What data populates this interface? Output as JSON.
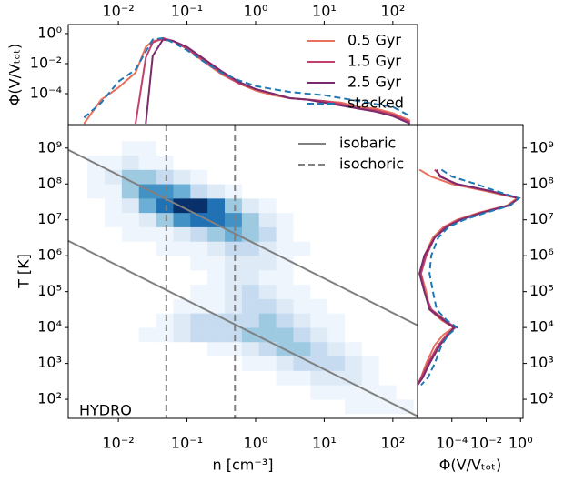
{
  "chart_data": [
    {
      "type": "heatmap",
      "xlabel": "n [cm⁻³]",
      "ylabel": "T [K]",
      "annotation": "HYDRO",
      "log_x": true,
      "log_y": true,
      "legend": "upper right",
      "xlim": [
        0.00186,
        229
      ],
      "ylim": [
        29.5,
        4500000000
      ],
      "xticks": [
        {
          "value": 0.01,
          "label": "10⁻²"
        },
        {
          "value": 0.1,
          "label": "10⁻¹"
        },
        {
          "value": 1,
          "label": "10⁰"
        },
        {
          "value": 10,
          "label": "10¹"
        },
        {
          "value": 100,
          "label": "10²"
        }
      ],
      "yticks": [
        {
          "value": 100,
          "label": "10²"
        },
        {
          "value": 1000,
          "label": "10³"
        },
        {
          "value": 10000,
          "label": "10⁴"
        },
        {
          "value": 100000,
          "label": "10⁵"
        },
        {
          "value": 1000000,
          "label": "10⁶"
        },
        {
          "value": 10000000,
          "label": "10⁷"
        },
        {
          "value": 100000000,
          "label": "10⁸"
        },
        {
          "value": 1000000000,
          "label": "10⁹"
        }
      ],
      "heatmap": {
        "zlim": [
          0,
          9
        ],
        "colormap": [
          "#ffffff",
          "#eef5fc",
          "#deebf7",
          "#c6dbef",
          "#9ecae1",
          "#6baed6",
          "#4292c6",
          "#2171b5",
          "#08519c",
          "#08306b"
        ],
        "x_edges": [
          0.001995,
          0.003548,
          0.00631,
          0.01122,
          0.01995,
          0.03548,
          0.0631,
          0.1122,
          0.1995,
          0.3548,
          0.631,
          1.122,
          1.995,
          3.548,
          6.31,
          11.22,
          19.95,
          35.48,
          63.1,
          112.2,
          199.5
        ],
        "y_edges": [
          39.8,
          100,
          251,
          631,
          1585,
          3981,
          10000,
          25119,
          63096,
          158489,
          398107,
          1000000,
          2510000,
          6310000,
          15850000,
          39800000,
          100000000,
          251000000,
          631000000,
          1585000000,
          3980000000
        ],
        "z": [
          [
            0,
            0,
            0,
            0,
            0,
            0,
            0,
            0,
            0,
            0,
            0,
            0,
            0,
            0,
            0,
            0,
            1,
            1,
            1,
            1
          ],
          [
            0,
            0,
            0,
            0,
            0,
            0,
            0,
            0,
            0,
            0,
            0,
            0,
            0,
            0,
            1,
            1,
            1,
            1,
            1,
            0
          ],
          [
            0,
            0,
            0,
            0,
            0,
            0,
            0,
            0,
            0,
            0,
            0,
            0,
            1,
            1,
            2,
            2,
            2,
            1,
            0,
            0
          ],
          [
            0,
            0,
            0,
            0,
            0,
            0,
            0,
            0,
            0,
            0,
            1,
            1,
            2,
            3,
            3,
            3,
            2,
            1,
            0,
            0
          ],
          [
            0,
            0,
            0,
            0,
            0,
            0,
            0,
            0,
            1,
            1,
            2,
            3,
            4,
            4,
            3,
            2,
            1,
            0,
            0,
            0
          ],
          [
            0,
            0,
            0,
            0,
            1,
            1,
            2,
            3,
            3,
            3,
            4,
            4,
            4,
            3,
            2,
            1,
            0,
            0,
            0,
            0
          ],
          [
            0,
            0,
            0,
            0,
            0,
            1,
            2,
            3,
            3,
            3,
            3,
            4,
            3,
            2,
            1,
            1,
            0,
            0,
            0,
            0
          ],
          [
            0,
            0,
            0,
            0,
            0,
            0,
            1,
            1,
            1,
            2,
            3,
            3,
            2,
            1,
            1,
            0,
            0,
            0,
            0,
            0
          ],
          [
            0,
            0,
            0,
            0,
            0,
            0,
            0,
            1,
            1,
            2,
            3,
            2,
            1,
            1,
            0,
            0,
            0,
            0,
            0,
            0
          ],
          [
            0,
            0,
            0,
            0,
            0,
            0,
            0,
            0,
            1,
            2,
            2,
            1,
            1,
            0,
            0,
            0,
            0,
            0,
            0,
            0
          ],
          [
            0,
            0,
            0,
            0,
            0,
            0,
            0,
            1,
            1,
            2,
            2,
            2,
            1,
            0,
            0,
            0,
            0,
            0,
            0,
            0
          ],
          [
            0,
            0,
            0,
            0,
            0,
            1,
            1,
            1,
            2,
            3,
            3,
            2,
            1,
            1,
            0,
            0,
            0,
            0,
            0,
            0
          ],
          [
            0,
            0,
            0,
            1,
            1,
            1,
            2,
            3,
            4,
            5,
            4,
            3,
            1,
            0,
            0,
            0,
            0,
            0,
            0,
            0
          ],
          [
            0,
            0,
            1,
            1,
            2,
            4,
            6,
            7,
            7,
            6,
            4,
            2,
            1,
            0,
            0,
            0,
            0,
            0,
            0,
            0
          ],
          [
            0,
            0,
            1,
            2,
            5,
            7,
            9,
            9,
            7,
            4,
            2,
            1,
            0,
            0,
            0,
            0,
            0,
            0,
            0,
            0
          ],
          [
            0,
            1,
            1,
            4,
            6,
            6,
            5,
            3,
            2,
            1,
            0,
            0,
            0,
            0,
            0,
            0,
            0,
            0,
            0,
            0
          ],
          [
            0,
            1,
            2,
            4,
            4,
            3,
            2,
            1,
            0,
            0,
            0,
            0,
            0,
            0,
            0,
            0,
            0,
            0,
            0,
            0
          ],
          [
            0,
            1,
            1,
            2,
            1,
            1,
            0,
            0,
            0,
            0,
            0,
            0,
            0,
            0,
            0,
            0,
            0,
            0,
            0,
            0
          ],
          [
            0,
            0,
            0,
            1,
            1,
            0,
            0,
            0,
            0,
            0,
            0,
            0,
            0,
            0,
            0,
            0,
            0,
            0,
            0,
            0
          ],
          [
            0,
            0,
            0,
            0,
            0,
            0,
            0,
            0,
            0,
            0,
            0,
            0,
            0,
            0,
            0,
            0,
            0,
            0,
            0,
            0
          ]
        ]
      },
      "lines": [
        {
          "name": "isobaric",
          "color": "#808080",
          "dashed": false,
          "segments": [
            {
              "x": [
                0.00186,
                229
              ],
              "y": [
                890000000,
                11500
              ]
            },
            {
              "x": [
                0.00186,
                229
              ],
              "y": [
                2600000,
                34
              ]
            }
          ]
        },
        {
          "name": "isochoric",
          "color": "#808080",
          "dashed": true,
          "xvalues": [
            0.05,
            0.5
          ]
        }
      ]
    },
    {
      "type": "line",
      "ylabel": "Φ(V/Vₜₒₜ)",
      "log_x": true,
      "log_y": true,
      "legend": "upper right",
      "xlim": [
        0.00186,
        229
      ],
      "ylim": [
        8.7e-07,
        4
      ],
      "xticks": [
        {
          "value": 0.01,
          "label": "10⁻²"
        },
        {
          "value": 0.1,
          "label": "10⁻¹"
        },
        {
          "value": 1,
          "label": "10⁰"
        },
        {
          "value": 10,
          "label": "10¹"
        },
        {
          "value": 100,
          "label": "10²"
        }
      ],
      "yticks": [
        {
          "value": 1,
          "label": "10⁰"
        },
        {
          "value": 0.01,
          "label": "10⁻²"
        },
        {
          "value": 0.0001,
          "label": "10⁻⁴"
        }
      ],
      "x": [
        0.00316,
        0.00562,
        0.01,
        0.0178,
        0.0251,
        0.0316,
        0.0447,
        0.0631,
        0.1,
        0.178,
        0.316,
        0.562,
        1,
        1.78,
        3.16,
        5.62,
        10,
        17.8,
        31.6,
        56.2,
        100,
        178
      ],
      "series": [
        {
          "name": "0.5 Gyr",
          "color": "#e8705c",
          "dashed": false,
          "values": [
            1e-06,
            4e-05,
            0.00025,
            0.0025,
            0.13,
            0.32,
            0.4,
            0.32,
            0.1,
            0.013,
            0.002,
            0.0005,
            0.00016,
            7.9e-05,
            5e-05,
            4e-05,
            3.2e-05,
            2.5e-05,
            1.3e-05,
            1e-05,
            5e-06,
            1.6e-06
          ]
        },
        {
          "name": "1.5 Gyr",
          "color": "#c2406a",
          "dashed": false,
          "values": [
            null,
            null,
            null,
            1e-06,
            0.025,
            0.25,
            0.5,
            0.32,
            0.1,
            0.016,
            0.0025,
            0.0005,
            0.0002,
            0.0001,
            5e-05,
            4e-05,
            3.2e-05,
            2e-05,
            1e-05,
            7.9e-06,
            4e-06,
            1.3e-06
          ]
        },
        {
          "name": "2.5 Gyr",
          "color": "#7b2a6b",
          "dashed": false,
          "values": [
            null,
            null,
            null,
            null,
            1e-06,
            0.032,
            0.4,
            0.32,
            0.13,
            0.02,
            0.0032,
            0.00063,
            0.0002,
            0.0001,
            5e-05,
            4e-05,
            2.5e-05,
            1.6e-05,
            1e-05,
            6.3e-06,
            3.2e-06,
            1e-06
          ]
        },
        {
          "name": "stacked",
          "color": "#1f77b4",
          "dashed": true,
          "values": [
            2.5e-06,
            2.5e-05,
            0.00063,
            0.004,
            0.063,
            0.4,
            0.5,
            0.25,
            0.079,
            0.013,
            0.0025,
            0.00079,
            0.00032,
            0.0002,
            0.00013,
            0.0001,
            7.9e-05,
            5e-05,
            3.2e-05,
            2e-05,
            1.3e-05,
            3.2e-06
          ]
        }
      ]
    },
    {
      "type": "line",
      "orientation": "horizontal",
      "xlabel": "Φ(V/Vₜₒₜ)",
      "log_x": true,
      "log_y": true,
      "xlim": [
        1e-06,
        1.4
      ],
      "ylim": [
        29.5,
        4500000000
      ],
      "xticks": [
        {
          "value": 0.0001,
          "label": "10⁻⁴"
        },
        {
          "value": 0.01,
          "label": "10⁻²"
        },
        {
          "value": 1,
          "label": "10⁰"
        }
      ],
      "yticks": [
        {
          "value": 100,
          "label": "10²"
        },
        {
          "value": 1000,
          "label": "10³"
        },
        {
          "value": 10000,
          "label": "10⁴"
        },
        {
          "value": 100000,
          "label": "10⁵"
        },
        {
          "value": 1000000,
          "label": "10⁶"
        },
        {
          "value": 10000000,
          "label": "10⁷"
        },
        {
          "value": 100000000,
          "label": "10⁸"
        },
        {
          "value": 1000000000,
          "label": "10⁹"
        }
      ],
      "y": [
        250000000,
        160000000,
        100000000,
        63000000,
        40000000,
        25000000,
        16000000,
        10000000,
        6300000,
        3200000,
        1000000,
        320000,
        100000,
        32000,
        16000,
        10000,
        6300,
        3200,
        1000,
        400,
        250
      ],
      "series": [
        {
          "color": "#e8705c",
          "dashed": false,
          "values": [
            1.3e-06,
            6.3e-06,
            0.0001,
            0.01,
            0.63,
            0.16,
            0.004,
            0.0002,
            3.2e-05,
            7.9e-06,
            2.5e-06,
            1.6e-06,
            3.2e-06,
            5e-06,
            2.5e-05,
            0.00013,
            3.2e-05,
            1e-05,
            3.2e-06,
            1.6e-06,
            1e-06
          ]
        },
        {
          "color": "#c2406a",
          "dashed": false,
          "values": [
            1e-05,
            2.5e-05,
            0.00016,
            0.016,
            0.79,
            0.2,
            0.005,
            0.00025,
            4e-05,
            1e-05,
            3.2e-06,
            1.6e-06,
            2.5e-06,
            6.3e-06,
            4e-05,
            0.00016,
            5e-05,
            1.6e-05,
            4e-06,
            1.6e-06,
            1e-06
          ]
        },
        {
          "color": "#7b2a6b",
          "dashed": false,
          "values": [
            1.3e-05,
            2e-05,
            0.0002,
            0.02,
            0.79,
            0.2,
            0.0063,
            0.00032,
            5e-05,
            1e-05,
            2.5e-06,
            1.3e-06,
            2.5e-06,
            5e-06,
            3.2e-05,
            0.00013,
            6.3e-05,
            2e-05,
            5e-06,
            2e-06,
            1e-06
          ]
        },
        {
          "color": "#1f77b4",
          "dashed": true,
          "values": [
            2.5e-05,
            0.0001,
            0.0025,
            0.04,
            0.79,
            0.25,
            0.01,
            0.0005,
            6.3e-05,
            1.6e-05,
            6.3e-06,
            5e-06,
            7.9e-06,
            1.3e-05,
            5e-05,
            0.0002,
            6.3e-05,
            2.5e-05,
            1e-05,
            4e-06,
            1.6e-06
          ]
        }
      ]
    }
  ]
}
